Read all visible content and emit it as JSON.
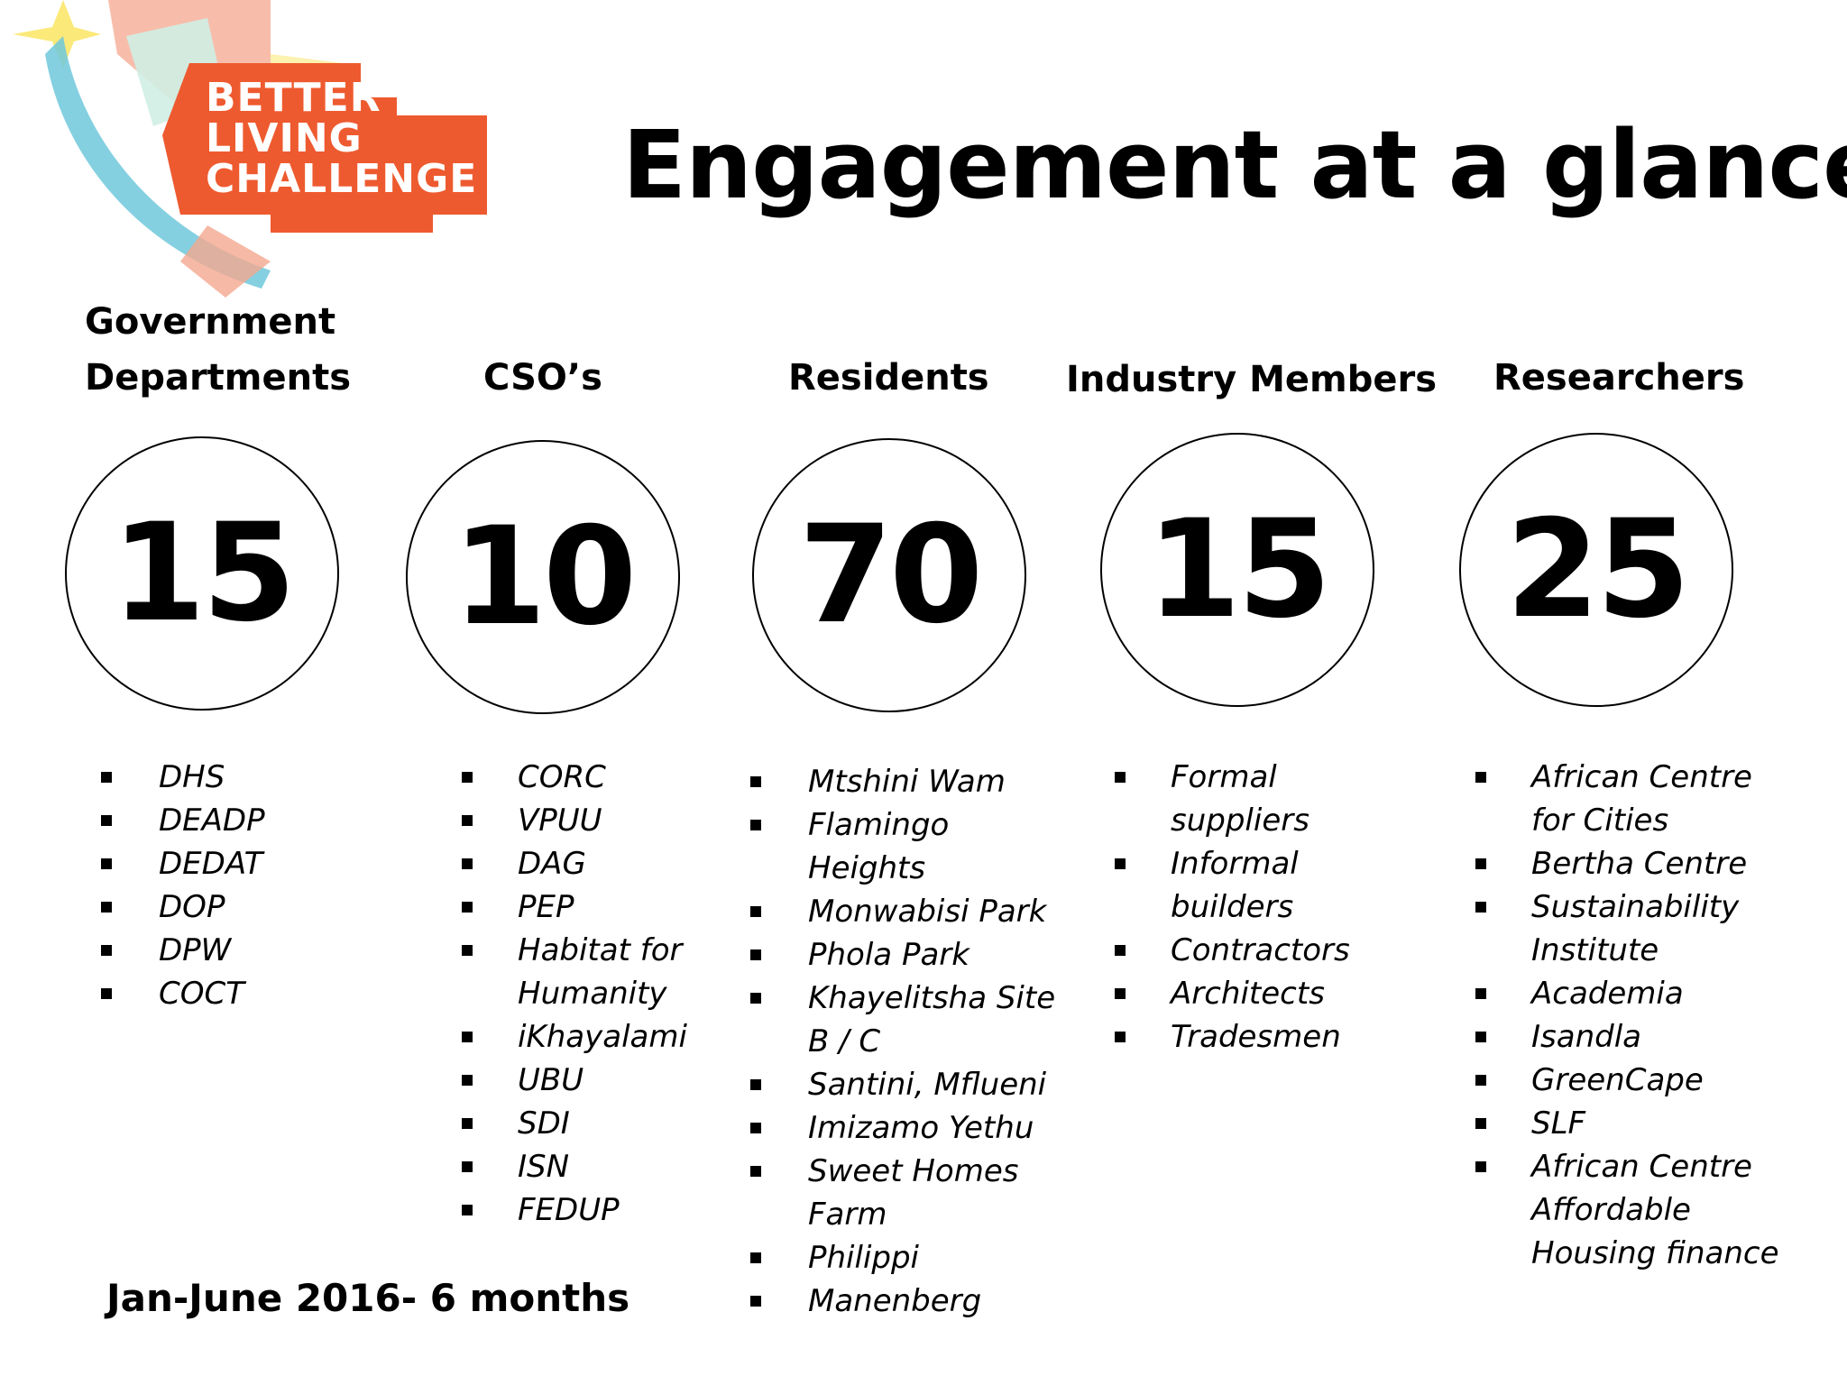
{
  "logo": {
    "lines": [
      "BETTER",
      "LIVING",
      "CHALLENGE"
    ],
    "colors": {
      "orange": "#ee5a2f",
      "peach": "#f4a78e",
      "teal": "#6ec8dc",
      "mint": "#cfeee4",
      "yellow": "#fbe97a"
    }
  },
  "title": "Engagement at a glance",
  "columns": [
    {
      "heading": [
        "Government",
        "Departments"
      ],
      "count": "15",
      "items": [
        [
          "DHS"
        ],
        [
          "DEADP"
        ],
        [
          "DEDAT"
        ],
        [
          "DOP"
        ],
        [
          "DPW"
        ],
        [
          "COCT"
        ]
      ]
    },
    {
      "heading": [
        "CSO’s"
      ],
      "count": "10",
      "items": [
        [
          "CORC"
        ],
        [
          "VPUU"
        ],
        [
          "DAG"
        ],
        [
          "PEP"
        ],
        [
          "Habitat for",
          "Humanity"
        ],
        [
          "iKhayalami"
        ],
        [
          "UBU"
        ],
        [
          "SDI"
        ],
        [
          "ISN"
        ],
        [
          "FEDUP"
        ]
      ]
    },
    {
      "heading": [
        "Residents"
      ],
      "count": "70",
      "items": [
        [
          "Mtshini Wam"
        ],
        [
          "Flamingo",
          "Heights"
        ],
        [
          "Monwabisi Park"
        ],
        [
          "Phola Park"
        ],
        [
          "Khayelitsha Site",
          "B / C"
        ],
        [
          "Santini, Mflueni"
        ],
        [
          "Imizamo Yethu"
        ],
        [
          "Sweet Homes",
          "Farm"
        ],
        [
          "Philippi"
        ],
        [
          "Manenberg"
        ]
      ]
    },
    {
      "heading": [
        "Industry Members"
      ],
      "count": "15",
      "items": [
        [
          "Formal",
          "suppliers"
        ],
        [
          "Informal",
          "builders"
        ],
        [
          "Contractors"
        ],
        [
          "Architects"
        ],
        [
          "Tradesmen"
        ]
      ]
    },
    {
      "heading": [
        "Researchers"
      ],
      "count": "25",
      "items": [
        [
          "African Centre",
          "for Cities"
        ],
        [
          "Bertha Centre"
        ],
        [
          "Sustainability",
          "Institute"
        ],
        [
          "Academia"
        ],
        [
          "Isandla"
        ],
        [
          "GreenCape"
        ],
        [
          "SLF"
        ],
        [
          "African Centre",
          "Affordable",
          "Housing finance"
        ]
      ]
    }
  ],
  "footer": "Jan-June 2016- 6 months"
}
